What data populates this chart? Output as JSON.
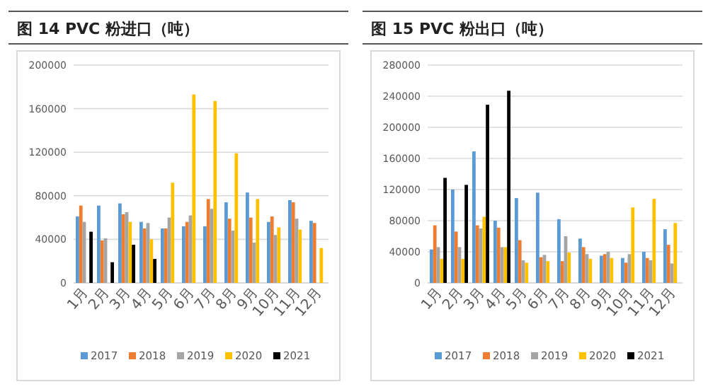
{
  "chart_data": [
    {
      "type": "bar",
      "title": "图 14 PVC 粉进口（吨）",
      "categories": [
        "1月",
        "2月",
        "3月",
        "4月",
        "5月",
        "6月",
        "7月",
        "8月",
        "9月",
        "10月",
        "11月",
        "12月"
      ],
      "ylim": [
        0,
        200000
      ],
      "yticks": [
        0,
        40000,
        80000,
        120000,
        160000,
        200000
      ],
      "grid": "y",
      "legend": "bottom",
      "series": [
        {
          "name": "2017",
          "color": "#5b9bd5",
          "values": [
            61000,
            71000,
            73000,
            56000,
            50000,
            52000,
            52000,
            74000,
            83000,
            56000,
            76000,
            57000
          ]
        },
        {
          "name": "2018",
          "color": "#ed7d31",
          "values": [
            71000,
            39000,
            63000,
            50000,
            50000,
            56000,
            77000,
            59000,
            60000,
            61000,
            74000,
            55000
          ]
        },
        {
          "name": "2019",
          "color": "#a5a5a5",
          "values": [
            56000,
            41000,
            65000,
            55000,
            60000,
            62000,
            68000,
            48000,
            37000,
            44000,
            59000,
            null
          ]
        },
        {
          "name": "2020",
          "color": "#ffc000",
          "values": [
            null,
            null,
            56000,
            40000,
            92000,
            173000,
            167000,
            119000,
            77000,
            51000,
            49000,
            32000
          ]
        },
        {
          "name": "2021",
          "color": "#000000",
          "values": [
            47000,
            19000,
            35000,
            22000,
            null,
            null,
            null,
            null,
            null,
            null,
            null,
            null
          ]
        }
      ]
    },
    {
      "type": "bar",
      "title": "图 15 PVC 粉出口（吨）",
      "categories": [
        "1月",
        "2月",
        "3月",
        "4月",
        "5月",
        "6月",
        "7月",
        "8月",
        "9月",
        "10月",
        "11月",
        "12月"
      ],
      "ylim": [
        0,
        280000
      ],
      "yticks": [
        0,
        40000,
        80000,
        120000,
        160000,
        200000,
        240000,
        280000
      ],
      "grid": "y",
      "legend": "bottom",
      "series": [
        {
          "name": "2017",
          "color": "#5b9bd5",
          "values": [
            43000,
            120000,
            169000,
            80000,
            109000,
            116000,
            82000,
            57000,
            35000,
            32000,
            40000,
            69000
          ]
        },
        {
          "name": "2018",
          "color": "#ed7d31",
          "values": [
            74000,
            66000,
            74000,
            71000,
            55000,
            33000,
            28000,
            46000,
            37000,
            26000,
            32000,
            49000
          ]
        },
        {
          "name": "2019",
          "color": "#a5a5a5",
          "values": [
            46000,
            46000,
            70000,
            46000,
            29000,
            36000,
            60000,
            37000,
            40000,
            37000,
            29000,
            25000
          ]
        },
        {
          "name": "2020",
          "color": "#ffc000",
          "values": [
            31000,
            31000,
            85000,
            46000,
            26000,
            28000,
            39000,
            31000,
            32000,
            97000,
            108000,
            77000
          ]
        },
        {
          "name": "2021",
          "color": "#000000",
          "values": [
            135000,
            126000,
            229000,
            247000,
            null,
            null,
            null,
            null,
            null,
            null,
            null,
            null
          ]
        }
      ]
    }
  ]
}
